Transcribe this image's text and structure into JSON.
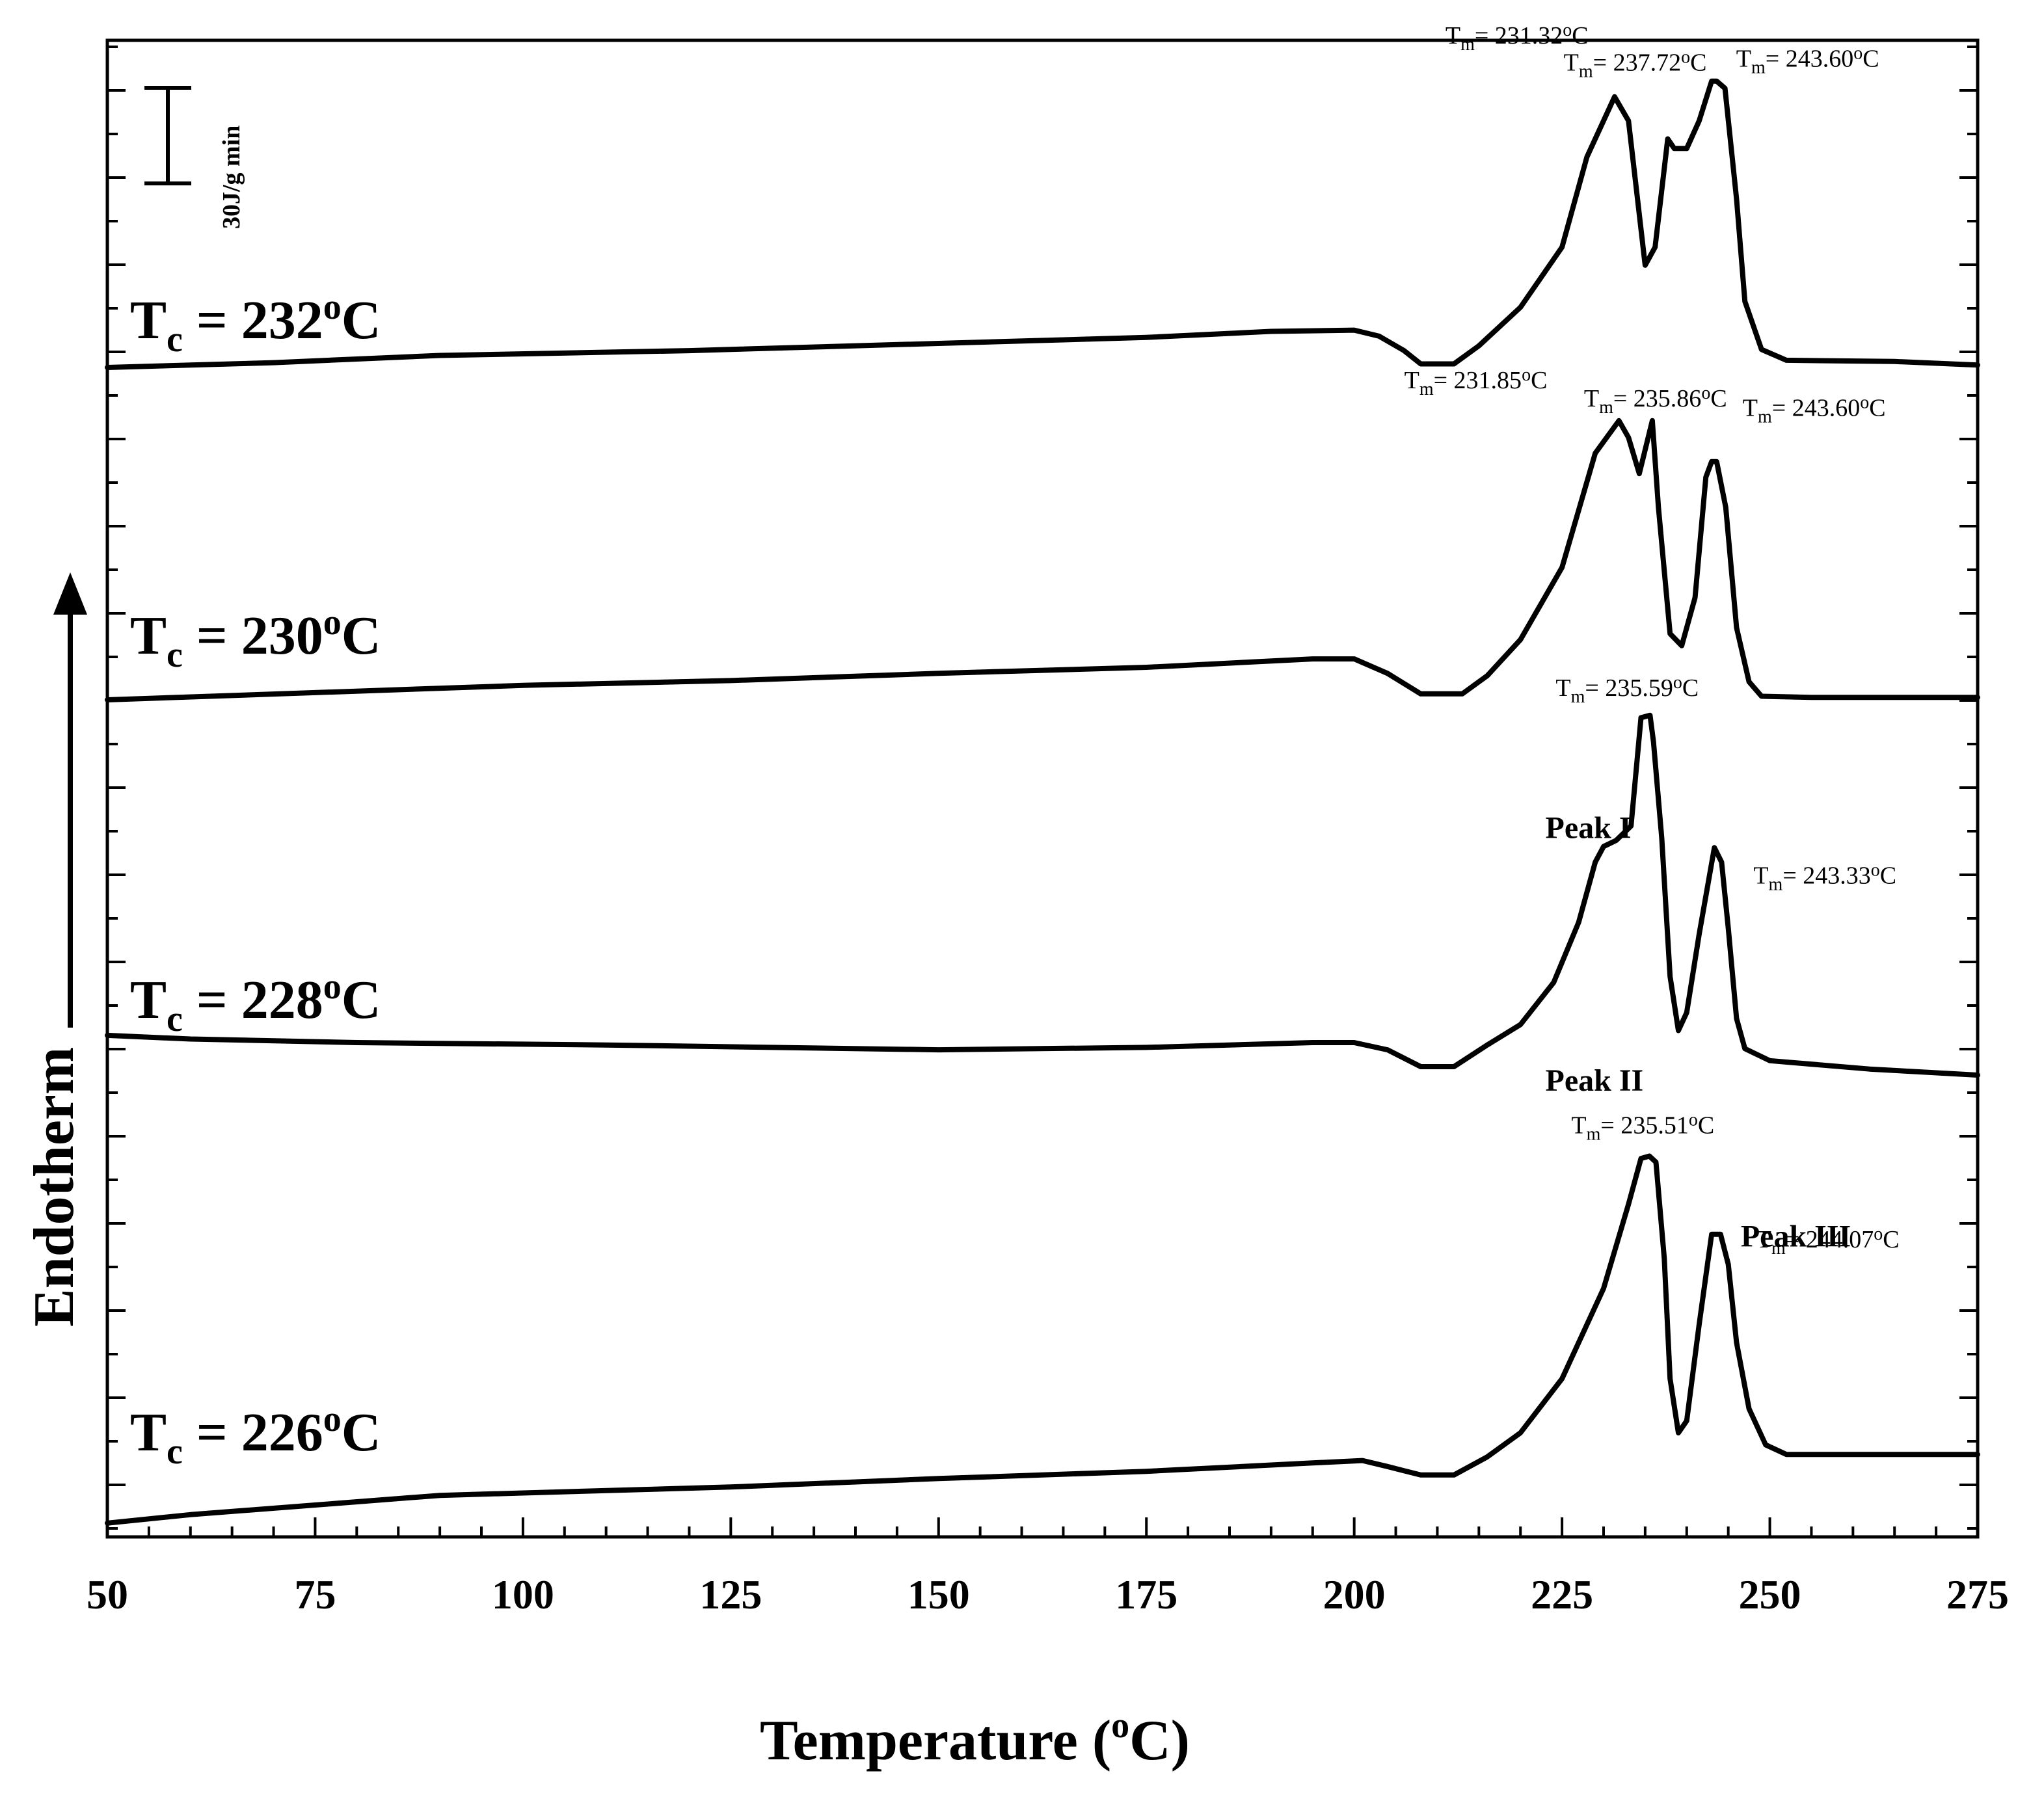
{
  "chart_data": {
    "type": "line",
    "xlabel": "Temperature (",
    "xlabel_degree": "o",
    "xlabel_unit": "C)",
    "ylabel": "Endotherm",
    "xlim": [
      50,
      275
    ],
    "xticks": [
      "50",
      "75",
      "100",
      "125",
      "150",
      "175",
      "200",
      "225",
      "250",
      "275"
    ],
    "scale_bar": "30J/g min",
    "series": [
      {
        "name": "Tc = 232°C",
        "label_main": "T",
        "label_sub": "c",
        "label_rest": " = 232",
        "label_deg": "o",
        "label_unit": "C",
        "baseline": 0,
        "points": [
          [
            50,
            0
          ],
          [
            70,
            4
          ],
          [
            90,
            10
          ],
          [
            120,
            14
          ],
          [
            150,
            20
          ],
          [
            175,
            25
          ],
          [
            190,
            30
          ],
          [
            200,
            31
          ],
          [
            203,
            26
          ],
          [
            206,
            14
          ],
          [
            208,
            3
          ],
          [
            212,
            3
          ],
          [
            215,
            18
          ],
          [
            220,
            50
          ],
          [
            225,
            100
          ],
          [
            228,
            175
          ],
          [
            231.32,
            225
          ],
          [
            233,
            205
          ],
          [
            235,
            85
          ],
          [
            236.2,
            100
          ],
          [
            237.72,
            190
          ],
          [
            238.5,
            182
          ],
          [
            240,
            182
          ],
          [
            241.5,
            205
          ],
          [
            243,
            238
          ],
          [
            243.6,
            238
          ],
          [
            244.6,
            232
          ],
          [
            246,
            140
          ],
          [
            247,
            55
          ],
          [
            249,
            15
          ],
          [
            252,
            6
          ],
          [
            265,
            5
          ],
          [
            275,
            2
          ]
        ],
        "annotations": [
          {
            "t": "= 231.32",
            "x": 231.32,
            "y": 225
          },
          {
            "t": "= 237.72",
            "x": 237.72,
            "y": 190
          },
          {
            "t": "= 243.60",
            "x": 243.6,
            "y": 238
          }
        ]
      },
      {
        "name": "Tc = 230°C",
        "label_main": "T",
        "label_sub": "c",
        "label_rest": " = 230",
        "label_deg": "o",
        "label_unit": "C",
        "baseline": 0,
        "points": [
          [
            50,
            0
          ],
          [
            75,
            6
          ],
          [
            100,
            12
          ],
          [
            125,
            16
          ],
          [
            150,
            22
          ],
          [
            175,
            27
          ],
          [
            195,
            34
          ],
          [
            200,
            34
          ],
          [
            204,
            22
          ],
          [
            208,
            5
          ],
          [
            213,
            5
          ],
          [
            216,
            20
          ],
          [
            220,
            50
          ],
          [
            225,
            110
          ],
          [
            229,
            205
          ],
          [
            231.85,
            232
          ],
          [
            233,
            218
          ],
          [
            234.3,
            188
          ],
          [
            235.86,
            232
          ],
          [
            236.6,
            160
          ],
          [
            238,
            55
          ],
          [
            239.4,
            45
          ],
          [
            241,
            85
          ],
          [
            242.3,
            185
          ],
          [
            243,
            198
          ],
          [
            243.6,
            198
          ],
          [
            244.7,
            160
          ],
          [
            246,
            60
          ],
          [
            247.5,
            15
          ],
          [
            249,
            3
          ],
          [
            255,
            2
          ],
          [
            275,
            2
          ]
        ],
        "annotations": [
          {
            "t": "= 231.85",
            "x": 231.85,
            "y": 232
          },
          {
            "t": "= 235.86",
            "x": 235.86,
            "y": 232
          },
          {
            "t": "= 243.60",
            "x": 243.6,
            "y": 198
          }
        ]
      },
      {
        "name": "Tc = 228°C",
        "label_main": "T",
        "label_sub": "c",
        "label_rest": " = 228",
        "label_deg": "o",
        "label_unit": "C",
        "baseline": 0,
        "points": [
          [
            50,
            26
          ],
          [
            60,
            23
          ],
          [
            80,
            20
          ],
          [
            110,
            18
          ],
          [
            150,
            14
          ],
          [
            175,
            16
          ],
          [
            195,
            20
          ],
          [
            200,
            20
          ],
          [
            204,
            14
          ],
          [
            208,
            0
          ],
          [
            212,
            0
          ],
          [
            216,
            18
          ],
          [
            220,
            35
          ],
          [
            224,
            70
          ],
          [
            227,
            120
          ],
          [
            229,
            170
          ],
          [
            230,
            183
          ],
          [
            231.5,
            188
          ],
          [
            233.3,
            200
          ],
          [
            234.5,
            290
          ],
          [
            235.59,
            292
          ],
          [
            236,
            270
          ],
          [
            237,
            190
          ],
          [
            238,
            75
          ],
          [
            239,
            30
          ],
          [
            240,
            45
          ],
          [
            241.5,
            110
          ],
          [
            243.33,
            182
          ],
          [
            244.2,
            170
          ],
          [
            245,
            115
          ],
          [
            246,
            40
          ],
          [
            247,
            15
          ],
          [
            250,
            5
          ],
          [
            262,
            -2
          ],
          [
            275,
            -7
          ]
        ],
        "annotations": [
          {
            "t": "= 235.59",
            "x": 235.59,
            "y": 292
          },
          {
            "t": "= 243.33",
            "x": 243.33,
            "y": 182
          }
        ],
        "peak_labels": [
          {
            "t": "Peak I",
            "x": 223,
            "y": 190
          },
          {
            "t": "Peak II",
            "x": 223,
            "y": -20
          }
        ]
      },
      {
        "name": "Tc = 226°C",
        "label_main": "T",
        "label_sub": "c",
        "label_rest": " = 226",
        "label_deg": "o",
        "label_unit": "C",
        "baseline": 0,
        "points": [
          [
            50,
            -55
          ],
          [
            60,
            -48
          ],
          [
            75,
            -40
          ],
          [
            90,
            -32
          ],
          [
            100,
            -30
          ],
          [
            125,
            -25
          ],
          [
            150,
            -18
          ],
          [
            175,
            -12
          ],
          [
            195,
            -5
          ],
          [
            201,
            -3
          ],
          [
            204,
            -8
          ],
          [
            208,
            -15
          ],
          [
            212,
            -15
          ],
          [
            216,
            0
          ],
          [
            220,
            20
          ],
          [
            225,
            65
          ],
          [
            230,
            140
          ],
          [
            233,
            210
          ],
          [
            234.5,
            248
          ],
          [
            235.51,
            250
          ],
          [
            236.3,
            245
          ],
          [
            237.3,
            165
          ],
          [
            238,
            65
          ],
          [
            239,
            20
          ],
          [
            240,
            30
          ],
          [
            241.5,
            110
          ],
          [
            243,
            185
          ],
          [
            244.07,
            185
          ],
          [
            245,
            160
          ],
          [
            246,
            95
          ],
          [
            247.5,
            40
          ],
          [
            249.5,
            10
          ],
          [
            252,
            2
          ],
          [
            265,
            2
          ],
          [
            275,
            2
          ]
        ],
        "annotations": [
          {
            "t": "= 235.51",
            "x": 235.51,
            "y": 250
          },
          {
            "t": "= 244.07",
            "x": 244.07,
            "y": 185
          }
        ],
        "peak_labels": [
          {
            "t": "Peak III",
            "x": 246.5,
            "y": 175
          }
        ]
      }
    ]
  }
}
